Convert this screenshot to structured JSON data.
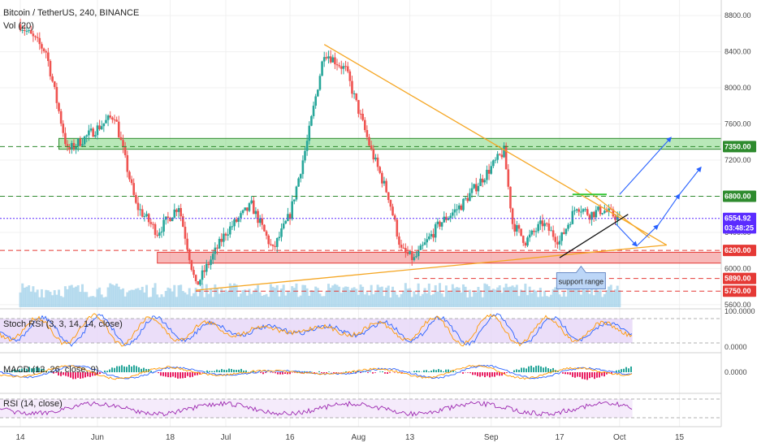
{
  "header": {
    "title": "Bitcoin / TetherUS, 240, BINANCE",
    "volume_label": "Vol (20)"
  },
  "colors": {
    "up": "#26a69a",
    "down": "#ef5350",
    "trend": "#f5a623",
    "resistance_zone": "#7ed67e",
    "support_zone": "#f08080",
    "price_line": "#5b2cff",
    "volume": "#9ccfe8",
    "stoch_bg": "#e6d6f7",
    "rsi_bg": "#f3e6fa",
    "projection": "#2962ff"
  },
  "chart_data": [
    {
      "type": "candlestick",
      "title": "Bitcoin / TetherUS, 240, BINANCE",
      "x_ticks": [
        "14",
        "Jun",
        "18",
        "Jul",
        "16",
        "Aug",
        "13",
        "Sep",
        "17",
        "Oct",
        "15"
      ],
      "ylim": [
        5500,
        8900
      ],
      "y_ticks": [
        5600,
        6000,
        6400,
        6800,
        7200,
        7600,
        8000,
        8400,
        8800
      ],
      "key_points": [
        {
          "date": "May 14",
          "price": 8700
        },
        {
          "date": "May 20",
          "price": 8400
        },
        {
          "date": "May 25",
          "price": 7300
        },
        {
          "date": "Jun 5",
          "price": 7700
        },
        {
          "date": "Jun 10",
          "price": 6700
        },
        {
          "date": "Jun 15",
          "price": 6400
        },
        {
          "date": "Jun 20",
          "price": 6700
        },
        {
          "date": "Jun 24",
          "price": 5800
        },
        {
          "date": "Jul 1",
          "price": 6400
        },
        {
          "date": "Jul 7",
          "price": 6700
        },
        {
          "date": "Jul 12",
          "price": 6200
        },
        {
          "date": "Jul 16",
          "price": 6600
        },
        {
          "date": "Jul 20",
          "price": 7400
        },
        {
          "date": "Jul 24",
          "price": 8400
        },
        {
          "date": "Jul 29",
          "price": 8200
        },
        {
          "date": "Aug 4",
          "price": 7300
        },
        {
          "date": "Aug 8",
          "price": 6800
        },
        {
          "date": "Aug 11",
          "price": 6200
        },
        {
          "date": "Aug 14",
          "price": 6100
        },
        {
          "date": "Aug 20",
          "price": 6500
        },
        {
          "date": "Aug 25",
          "price": 6700
        },
        {
          "date": "Aug 30",
          "price": 7000
        },
        {
          "date": "Sep 4",
          "price": 7300
        },
        {
          "date": "Sep 6",
          "price": 6500
        },
        {
          "date": "Sep 9",
          "price": 6300
        },
        {
          "date": "Sep 13",
          "price": 6500
        },
        {
          "date": "Sep 17",
          "price": 6300
        },
        {
          "date": "Sep 21",
          "price": 6700
        },
        {
          "date": "Sep 24",
          "price": 6600
        },
        {
          "date": "Sep 27",
          "price": 6650
        },
        {
          "date": "Oct 1",
          "price": 6555
        }
      ],
      "price_labels": [
        {
          "text": "7350.00",
          "value": 7350,
          "color": "#2e8b2e"
        },
        {
          "text": "6800.00",
          "value": 6800,
          "color": "#2e8b2e"
        },
        {
          "text": "6554.92",
          "value": 6554.92,
          "color": "#5b2cff"
        },
        {
          "text": "03:48:25",
          "value": 6450,
          "color": "#5b2cff"
        },
        {
          "text": "6200.00",
          "value": 6200,
          "color": "#e53935"
        },
        {
          "text": "5890.00",
          "value": 5890,
          "color": "#e53935"
        },
        {
          "text": "5750.00",
          "value": 5750,
          "color": "#e53935"
        }
      ],
      "zones": [
        {
          "from": 7320,
          "to": 7440,
          "type": "resistance"
        },
        {
          "from": 6060,
          "to": 6180,
          "type": "support"
        }
      ],
      "annotations": [
        "support range"
      ]
    },
    {
      "type": "line",
      "title": "Stoch RSI (3, 3, 14, 14, close)",
      "ylim": [
        0,
        100
      ],
      "y_ticks": [
        "100.0000",
        "0.0000"
      ],
      "bands": [
        20,
        80
      ]
    },
    {
      "type": "bar",
      "title": "MACD (12, 26, close, 9)",
      "y_ticks": [
        "0.0000"
      ]
    },
    {
      "type": "line",
      "title": "RSI (14, close)",
      "ylim": [
        0,
        100
      ],
      "bands": [
        30,
        70
      ]
    }
  ]
}
